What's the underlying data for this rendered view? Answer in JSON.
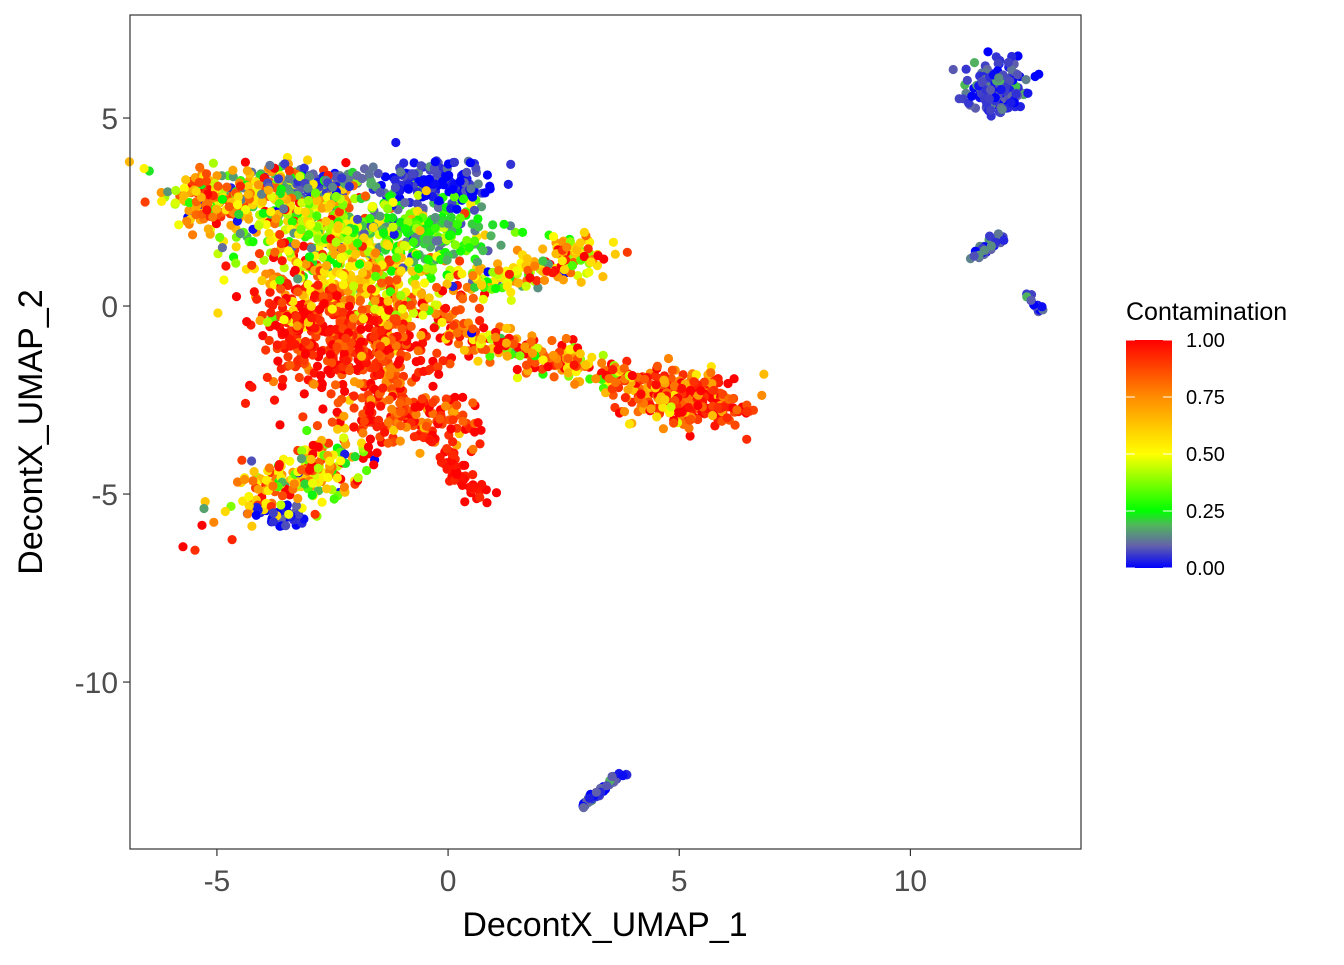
{
  "chart_data": {
    "type": "scatter",
    "title": "",
    "xlabel": "DecontX_UMAP_1",
    "ylabel": "DecontX_UMAP_2",
    "xlim": [
      -6.88,
      13.69
    ],
    "ylim": [
      -14.44,
      7.74
    ],
    "x_ticks": [
      -5,
      0,
      5,
      10
    ],
    "y_ticks": [
      5,
      0,
      -5,
      -10
    ],
    "x_tick_labels": [
      "-5",
      "0",
      "5",
      "10"
    ],
    "y_tick_labels": [
      "5",
      "0",
      "-5",
      "-10"
    ],
    "grid": false,
    "legend": {
      "title": "Contamination",
      "placement": "right",
      "type": "colorbar",
      "range": [
        0,
        1
      ],
      "tick_values": [
        1.0,
        0.75,
        0.5,
        0.25,
        0.0
      ],
      "tick_labels": [
        "1.00",
        "0.75",
        "0.50",
        "0.25",
        "0.00"
      ],
      "color_stops": [
        {
          "value": 0.0,
          "color": "#0000ff"
        },
        {
          "value": 0.1,
          "color": "#6464a8"
        },
        {
          "value": 0.19,
          "color": "#4fb85a"
        },
        {
          "value": 0.25,
          "color": "#00ff00"
        },
        {
          "value": 0.5,
          "color": "#ffff00"
        },
        {
          "value": 0.75,
          "color": "#ff8c00"
        },
        {
          "value": 1.0,
          "color": "#ff0000"
        }
      ]
    },
    "point_groups": [
      {
        "kind": "blob",
        "center": [
          -3.8,
          2.9
        ],
        "sd": [
          1.1,
          0.45
        ],
        "angle": -5,
        "n": 260,
        "value": 0.6,
        "value_sd": 0.25
      },
      {
        "kind": "blob",
        "center": [
          -5.2,
          2.8
        ],
        "sd": [
          0.45,
          0.35
        ],
        "angle": -20,
        "n": 90,
        "value": 0.8,
        "value_sd": 0.15
      },
      {
        "kind": "blob",
        "center": [
          -0.3,
          3.3
        ],
        "sd": [
          0.55,
          0.35
        ],
        "angle": 0,
        "n": 140,
        "value": 0.03,
        "value_sd": 0.05
      },
      {
        "kind": "blob",
        "center": [
          -2.6,
          3.25
        ],
        "sd": [
          0.9,
          0.22
        ],
        "angle": 0,
        "n": 110,
        "value": 0.1,
        "value_sd": 0.06
      },
      {
        "kind": "blob",
        "center": [
          -2.2,
          2.0
        ],
        "sd": [
          1.3,
          0.55
        ],
        "angle": 0,
        "n": 300,
        "value": 0.42,
        "value_sd": 0.15
      },
      {
        "kind": "blob",
        "center": [
          -0.4,
          2.0
        ],
        "sd": [
          0.7,
          0.5
        ],
        "angle": 0,
        "n": 160,
        "value": 0.22,
        "value_sd": 0.1
      },
      {
        "kind": "blob",
        "center": [
          -1.8,
          0.6
        ],
        "sd": [
          1.2,
          0.6
        ],
        "angle": 0,
        "n": 320,
        "value": 0.62,
        "value_sd": 0.18
      },
      {
        "kind": "blob",
        "center": [
          -1.7,
          -1.2
        ],
        "sd": [
          1.0,
          0.8
        ],
        "angle": 0,
        "n": 380,
        "value": 0.92,
        "value_sd": 0.1
      },
      {
        "kind": "blob",
        "center": [
          -3.0,
          -0.3
        ],
        "sd": [
          0.6,
          0.8
        ],
        "angle": 20,
        "n": 150,
        "value": 0.95,
        "value_sd": 0.08
      },
      {
        "kind": "blob",
        "center": [
          -0.9,
          -3.0
        ],
        "sd": [
          0.8,
          0.35
        ],
        "angle": 0,
        "n": 140,
        "value": 0.9,
        "value_sd": 0.12
      },
      {
        "kind": "blob",
        "center": [
          -3.2,
          -4.5
        ],
        "sd": [
          0.9,
          0.35
        ],
        "angle": 35,
        "n": 220,
        "value": 0.6,
        "value_sd": 0.25
      },
      {
        "kind": "blob",
        "center": [
          -3.6,
          -5.6
        ],
        "sd": [
          0.3,
          0.15
        ],
        "angle": 0,
        "n": 40,
        "value": 0.03,
        "value_sd": 0.04
      },
      {
        "kind": "line",
        "from": [
          -0.5,
          -3.4
        ],
        "to": [
          0.8,
          -5.2
        ],
        "width": 0.15,
        "n": 60,
        "value": 0.97,
        "value_sd": 0.03
      },
      {
        "kind": "line",
        "from": [
          0.0,
          -0.6
        ],
        "to": [
          4.0,
          -2.0
        ],
        "width": 0.25,
        "n": 200,
        "value": 0.75,
        "value_sd": 0.22
      },
      {
        "kind": "blob",
        "center": [
          5.0,
          -2.4
        ],
        "sd": [
          0.7,
          0.35
        ],
        "angle": -10,
        "n": 260,
        "value": 0.85,
        "value_sd": 0.15
      },
      {
        "kind": "line",
        "from": [
          5.5,
          -2.7
        ],
        "to": [
          6.6,
          -2.8
        ],
        "width": 0.08,
        "n": 25,
        "value": 0.95,
        "value_sd": 0.05
      },
      {
        "kind": "line",
        "from": [
          0.5,
          0.6
        ],
        "to": [
          2.5,
          1.0
        ],
        "width": 0.2,
        "n": 80,
        "value": 0.5,
        "value_sd": 0.25
      },
      {
        "kind": "blob",
        "center": [
          2.7,
          1.4
        ],
        "sd": [
          0.45,
          0.25
        ],
        "angle": 0,
        "n": 70,
        "value": 0.65,
        "value_sd": 0.25
      },
      {
        "kind": "blob",
        "center": [
          11.9,
          5.8
        ],
        "sd": [
          0.35,
          0.35
        ],
        "angle": 0,
        "n": 160,
        "value": 0.06,
        "value_sd": 0.06
      },
      {
        "kind": "line",
        "from": [
          11.3,
          1.2
        ],
        "to": [
          12.0,
          1.9
        ],
        "width": 0.08,
        "n": 40,
        "value": 0.08,
        "value_sd": 0.05
      },
      {
        "kind": "line",
        "from": [
          12.5,
          0.3
        ],
        "to": [
          12.8,
          -0.1
        ],
        "width": 0.05,
        "n": 14,
        "value": 0.1,
        "value_sd": 0.07
      },
      {
        "kind": "line",
        "from": [
          2.8,
          -13.4
        ],
        "to": [
          3.8,
          -12.4
        ],
        "width": 0.05,
        "n": 50,
        "value": 0.07,
        "value_sd": 0.05
      }
    ]
  }
}
